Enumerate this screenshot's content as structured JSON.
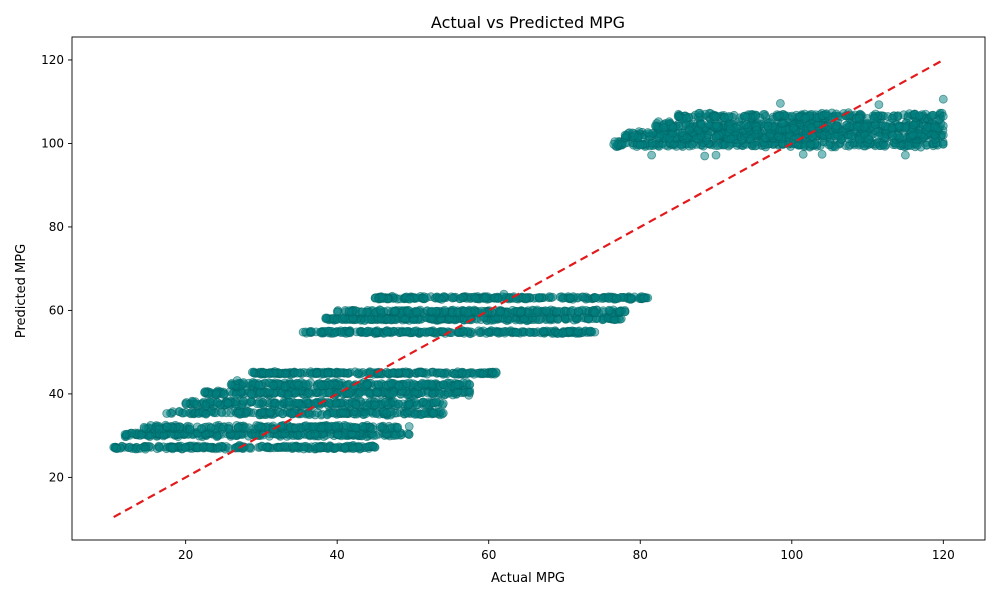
{
  "chart_data": {
    "type": "scatter",
    "title": "Actual vs Predicted MPG",
    "xlabel": "Actual MPG",
    "ylabel": "Predicted MPG",
    "xlim": [
      5.0,
      125.5
    ],
    "ylim": [
      5.0,
      125.5
    ],
    "xticks": [
      20,
      40,
      60,
      80,
      100,
      120
    ],
    "yticks": [
      20,
      40,
      60,
      80,
      100,
      120
    ],
    "grid": false,
    "point_color": "#008080",
    "point_edge_color": "#006666",
    "point_opacity": 0.5,
    "reference_line": {
      "x": [
        10.5,
        120.0
      ],
      "y": [
        10.5,
        120.0
      ],
      "color": "#e31a1c",
      "style": "dashed"
    },
    "clusters": [
      {
        "x_range": [
          10.5,
          45.0
        ],
        "y": 27.2,
        "y_spread": 0.5,
        "count": 260
      },
      {
        "x_range": [
          12.0,
          49.5
        ],
        "y": 30.3,
        "y_spread": 0.6,
        "count": 260
      },
      {
        "x_range": [
          14.5,
          48.0
        ],
        "y": 32.0,
        "y_spread": 0.6,
        "count": 200
      },
      {
        "x_range": [
          18.0,
          54.0
        ],
        "y": 35.4,
        "y_spread": 0.6,
        "count": 220
      },
      {
        "x_range": [
          20.0,
          54.0
        ],
        "y": 37.7,
        "y_spread": 0.7,
        "count": 240
      },
      {
        "x_range": [
          22.5,
          57.5
        ],
        "y": 40.3,
        "y_spread": 0.7,
        "count": 260
      },
      {
        "x_range": [
          26.0,
          57.5
        ],
        "y": 42.2,
        "y_spread": 0.7,
        "count": 220
      },
      {
        "x_range": [
          29.0,
          61.0
        ],
        "y": 45.0,
        "y_spread": 0.4,
        "count": 240
      },
      {
        "x_range": [
          35.5,
          74.0
        ],
        "y": 54.8,
        "y_spread": 0.4,
        "count": 260
      },
      {
        "x_range": [
          38.5,
          77.5
        ],
        "y": 58.0,
        "y_spread": 0.5,
        "count": 280
      },
      {
        "x_range": [
          40.0,
          78.0
        ],
        "y": 59.7,
        "y_spread": 0.5,
        "count": 240
      },
      {
        "x_range": [
          45.0,
          81.0
        ],
        "y": 63.0,
        "y_spread": 0.4,
        "count": 260
      },
      {
        "x_range": [
          76.5,
          120.0
        ],
        "y": 99.8,
        "y_spread": 0.8,
        "count": 260
      },
      {
        "x_range": [
          78.0,
          120.0
        ],
        "y": 102.0,
        "y_spread": 1.4,
        "count": 420
      },
      {
        "x_range": [
          82.0,
          120.0
        ],
        "y": 104.2,
        "y_spread": 1.2,
        "count": 340
      },
      {
        "x_range": [
          85.0,
          120.0
        ],
        "y": 106.5,
        "y_spread": 0.9,
        "count": 220
      }
    ],
    "outliers": [
      {
        "x": 81.5,
        "y": 97.2
      },
      {
        "x": 88.5,
        "y": 97.0
      },
      {
        "x": 90.0,
        "y": 97.2
      },
      {
        "x": 101.5,
        "y": 97.4
      },
      {
        "x": 104.0,
        "y": 97.4
      },
      {
        "x": 115.0,
        "y": 97.2
      },
      {
        "x": 98.5,
        "y": 109.6
      },
      {
        "x": 111.5,
        "y": 109.3
      },
      {
        "x": 120.0,
        "y": 110.6
      },
      {
        "x": 28.8,
        "y": 45.2
      },
      {
        "x": 26.8,
        "y": 43.2
      },
      {
        "x": 17.5,
        "y": 35.3
      },
      {
        "x": 49.5,
        "y": 32.2
      },
      {
        "x": 62.0,
        "y": 63.9
      },
      {
        "x": 38.5,
        "y": 58.2
      }
    ]
  }
}
